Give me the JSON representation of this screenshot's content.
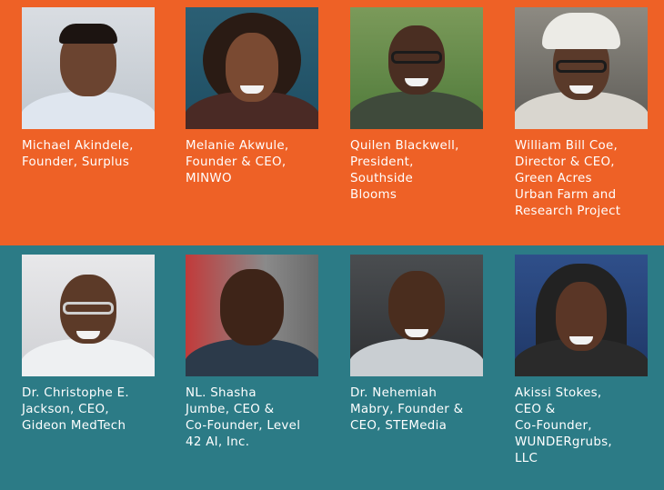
{
  "people": [
    {
      "lines": [
        "Michael Akindele,",
        "Founder, Surplus"
      ],
      "photo": "portrait-photo"
    },
    {
      "lines": [
        "Melanie Akwule,",
        "Founder & CEO,",
        "MINWO"
      ],
      "photo": "portrait-photo"
    },
    {
      "lines": [
        "Quilen Blackwell,",
        "President,",
        "Southside",
        "Blooms"
      ],
      "photo": "portrait-photo"
    },
    {
      "lines": [
        "William Bill Coe,",
        "Director & CEO,",
        "Green Acres",
        "Urban Farm and",
        "Research Project"
      ],
      "photo": "portrait-photo"
    },
    {
      "lines": [
        "Dr. Christophe E.",
        "Jackson, CEO,",
        "Gideon MedTech"
      ],
      "photo": "portrait-photo"
    },
    {
      "lines": [
        "NL. Shasha",
        "Jumbe, CEO &",
        "Co-Founder, Level",
        "42 AI, Inc."
      ],
      "photo": "portrait-photo"
    },
    {
      "lines": [
        "Dr. Nehemiah",
        "Mabry, Founder &",
        "CEO, STEMedia"
      ],
      "photo": "portrait-photo"
    },
    {
      "lines": [
        "Akissi Stokes,",
        "CEO &",
        "Co-Founder,",
        "WUNDERgrubs,",
        "LLC"
      ],
      "photo": "portrait-photo"
    }
  ],
  "colors": {
    "top_band": "#ee6126",
    "bottom_band": "#2c7b86",
    "text": "#ffffff"
  }
}
